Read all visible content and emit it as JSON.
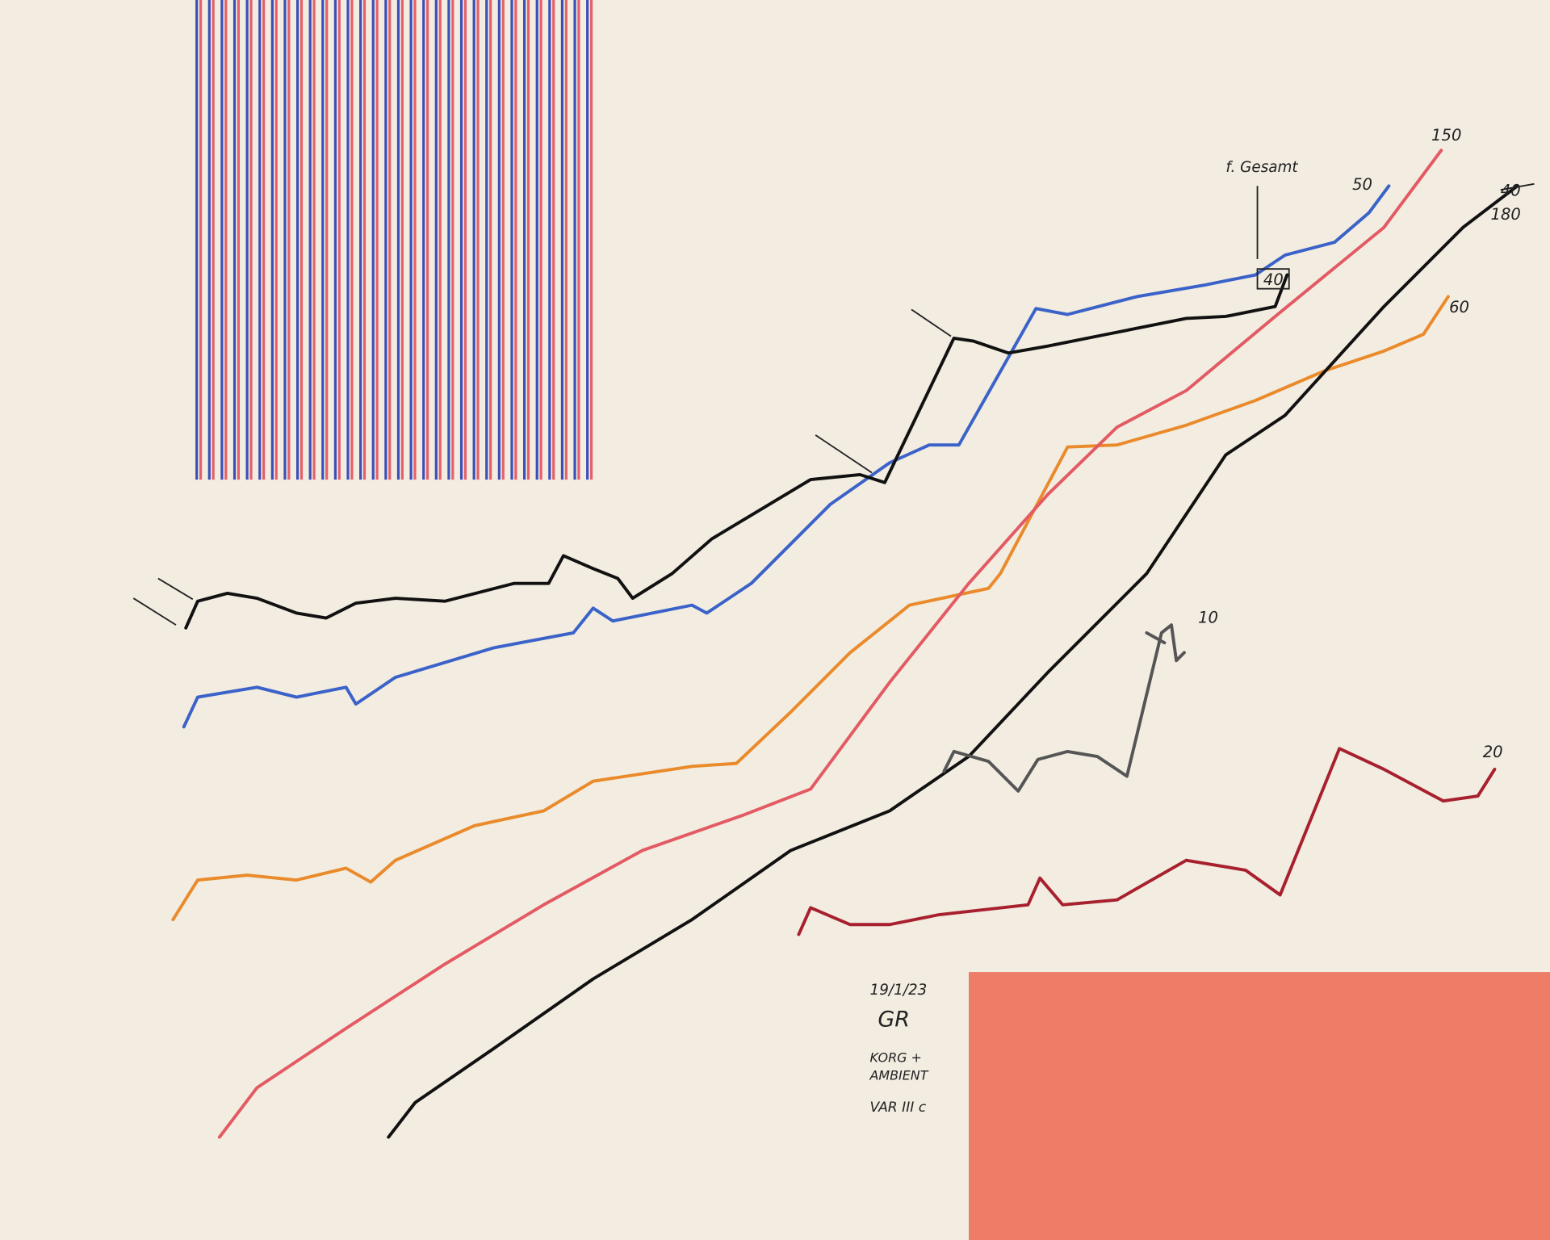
{
  "annotations": {
    "total": "f. Gesamt",
    "red_end": "150",
    "blue_end": "50",
    "black_end_old": "40",
    "black_end": "180",
    "orange_end": "60",
    "grey_end": "10",
    "darkred_end": "20",
    "boxed": "40"
  },
  "signature": {
    "date": "19/1/23",
    "initials": "GR",
    "line1": "KORG +",
    "line2": "AMBIENT",
    "line3": "VAR III c"
  }
}
